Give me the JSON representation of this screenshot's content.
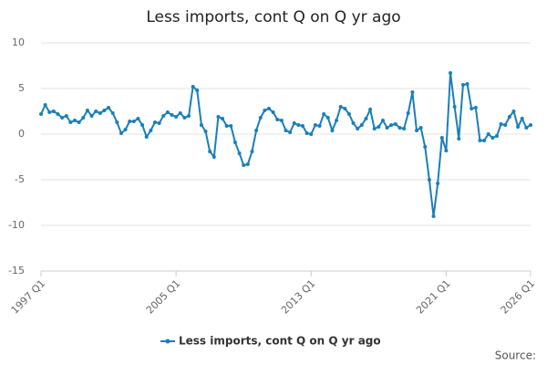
{
  "chart_data": {
    "type": "line",
    "title": "Less imports, cont Q on Q yr ago",
    "source": "Source:",
    "categories": [
      "1997 Q1",
      null,
      null,
      null,
      null,
      null,
      null,
      null,
      null,
      null,
      null,
      null,
      null,
      null,
      null,
      null,
      null,
      null,
      null,
      null,
      null,
      null,
      null,
      null,
      null,
      null,
      null,
      null,
      null,
      null,
      null,
      null,
      "2005 Q1",
      null,
      null,
      null,
      null,
      null,
      null,
      null,
      null,
      null,
      null,
      null,
      null,
      null,
      null,
      null,
      null,
      null,
      null,
      null,
      null,
      null,
      null,
      null,
      null,
      null,
      null,
      null,
      null,
      null,
      null,
      null,
      "2013 Q1",
      null,
      null,
      null,
      null,
      null,
      null,
      null,
      null,
      null,
      null,
      null,
      null,
      null,
      null,
      null,
      null,
      null,
      null,
      null,
      null,
      null,
      null,
      null,
      null,
      null,
      null,
      null,
      null,
      null,
      null,
      null,
      "2021 Q1",
      null,
      null,
      null,
      null,
      null,
      null,
      null,
      null,
      null,
      null,
      null,
      null,
      null,
      null,
      null,
      null,
      null,
      null,
      null,
      "2026 Q1"
    ],
    "series": [
      {
        "name": "Less imports, cont Q on Q yr ago",
        "color": "#1a7fba",
        "values": [
          2.2,
          3.2,
          2.4,
          2.5,
          2.2,
          1.8,
          2.0,
          1.3,
          1.5,
          1.3,
          1.8,
          2.6,
          2.0,
          2.5,
          2.3,
          2.6,
          2.9,
          2.3,
          1.3,
          0.1,
          0.5,
          1.4,
          1.4,
          1.7,
          1.0,
          -0.3,
          0.4,
          1.3,
          1.2,
          2.0,
          2.4,
          2.1,
          1.9,
          2.3,
          1.8,
          2.0,
          5.2,
          4.8,
          1.0,
          0.3,
          -1.9,
          -2.5,
          1.9,
          1.7,
          0.9,
          0.9,
          -0.9,
          -2.1,
          -3.4,
          -3.3,
          -1.9,
          0.4,
          1.8,
          2.6,
          2.8,
          2.4,
          1.6,
          1.5,
          0.4,
          0.2,
          1.2,
          1.0,
          0.9,
          0.1,
          0.0,
          1.0,
          0.9,
          2.2,
          1.8,
          0.4,
          1.5,
          3.0,
          2.8,
          2.2,
          1.2,
          0.6,
          1.0,
          1.7,
          2.7,
          0.6,
          0.8,
          1.5,
          0.7,
          1.0,
          1.1,
          0.7,
          0.6,
          2.3,
          4.6,
          0.4,
          0.7,
          -1.4,
          -5.0,
          -9.0,
          -5.4,
          -0.4,
          -1.8,
          6.7,
          3.0,
          -0.5,
          5.4,
          5.5,
          2.8,
          2.9,
          -0.7,
          -0.7,
          0.0,
          -0.4,
          -0.2,
          1.1,
          1.0,
          1.9,
          2.5,
          0.8,
          1.7,
          0.7,
          1.0
        ]
      }
    ],
    "ylim": [
      -15,
      10
    ],
    "yticks": [
      10,
      5,
      0,
      -5,
      -10,
      -15
    ],
    "grid": true
  }
}
